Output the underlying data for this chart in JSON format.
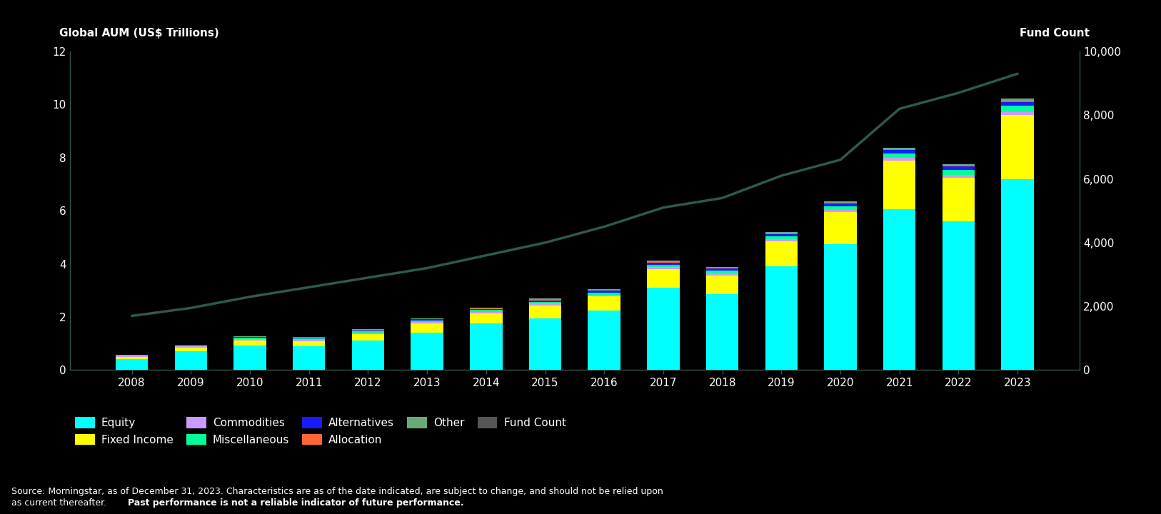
{
  "years": [
    2008,
    2009,
    2010,
    2011,
    2012,
    2013,
    2014,
    2015,
    2016,
    2017,
    2018,
    2019,
    2020,
    2021,
    2022,
    2023
  ],
  "equity": [
    0.42,
    0.72,
    0.92,
    0.9,
    1.1,
    1.4,
    1.75,
    1.95,
    2.25,
    3.1,
    2.85,
    3.9,
    4.75,
    6.05,
    5.6,
    7.2
  ],
  "fixed_income": [
    0.08,
    0.13,
    0.18,
    0.18,
    0.25,
    0.35,
    0.38,
    0.48,
    0.52,
    0.7,
    0.72,
    0.95,
    1.2,
    1.85,
    1.65,
    2.4
  ],
  "commodities": [
    0.04,
    0.06,
    0.08,
    0.08,
    0.07,
    0.07,
    0.07,
    0.07,
    0.07,
    0.08,
    0.08,
    0.08,
    0.09,
    0.1,
    0.11,
    0.12
  ],
  "miscellaneous": [
    0.01,
    0.02,
    0.04,
    0.04,
    0.04,
    0.05,
    0.06,
    0.07,
    0.08,
    0.09,
    0.09,
    0.11,
    0.13,
    0.16,
    0.18,
    0.24
  ],
  "alternatives": [
    0.01,
    0.01,
    0.02,
    0.02,
    0.03,
    0.04,
    0.04,
    0.06,
    0.07,
    0.08,
    0.08,
    0.09,
    0.1,
    0.12,
    0.12,
    0.14
  ],
  "allocation": [
    0.005,
    0.008,
    0.01,
    0.01,
    0.012,
    0.015,
    0.016,
    0.018,
    0.018,
    0.022,
    0.022,
    0.024,
    0.03,
    0.032,
    0.033,
    0.04
  ],
  "other": [
    0.008,
    0.012,
    0.02,
    0.02,
    0.028,
    0.03,
    0.036,
    0.042,
    0.044,
    0.05,
    0.05,
    0.056,
    0.06,
    0.07,
    0.072,
    0.09
  ],
  "fund_count": [
    1700,
    1950,
    2300,
    2600,
    2900,
    3200,
    3600,
    4000,
    4500,
    5100,
    5400,
    6100,
    6600,
    8200,
    8700,
    9300
  ],
  "colors": {
    "equity": "#00FFFF",
    "fixed_income": "#FFFF00",
    "commodities": "#CC99FF",
    "miscellaneous": "#00FF99",
    "alternatives": "#1a1aff",
    "allocation": "#FF6633",
    "other": "#6aaa7a"
  },
  "line_color": "#2d5a4d",
  "fund_count_legend_color": "#555555",
  "left_label": "Global AUM (US$ Trillions)",
  "right_label": "Fund Count",
  "ylim_left": [
    0,
    12
  ],
  "ylim_right": [
    0,
    10000
  ],
  "yticks_left": [
    0,
    2,
    4,
    6,
    8,
    10,
    12
  ],
  "yticks_right": [
    0,
    2000,
    4000,
    6000,
    8000,
    10000
  ],
  "background_color": "#000000",
  "text_color": "#ffffff",
  "axis_color": "#2d5a4d",
  "source_line1": "Source: Morningstar, as of December 31, 2023. Characteristics are as of the date indicated, are subject to change, and should not be relied upon",
  "source_line2_normal": "as current thereafter. ",
  "source_line2_bold": "Past performance is not a reliable indicator of future performance."
}
